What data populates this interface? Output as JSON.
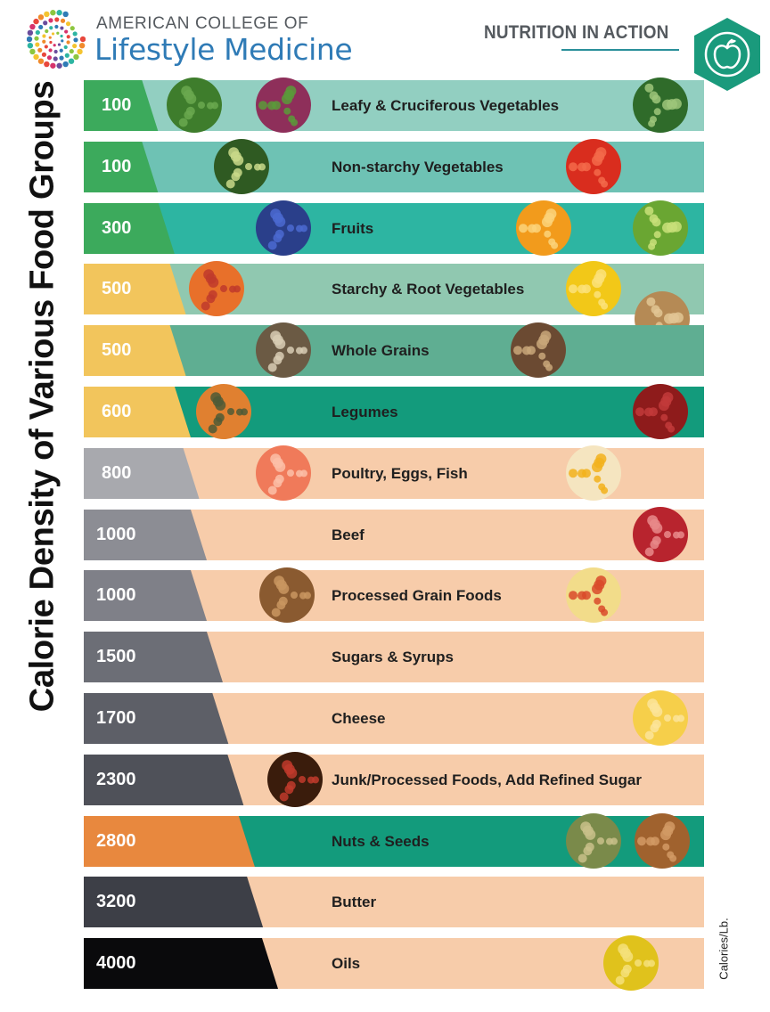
{
  "header": {
    "org_line1": "AMERICAN COLLEGE OF",
    "org_line2": "Lifestyle Medicine",
    "badge_title": "NUTRITION IN ACTION",
    "logo_icon": "dotted-circle-logo-icon",
    "badge_icon": "apple-icon",
    "brand_blue": "#2f7bb6",
    "badge_green": "#1a9a7c"
  },
  "chart_data": {
    "type": "bar",
    "ylabel": "Calorie Density of Various Food Groups",
    "unit_label": "Calories/Lb.",
    "categories": [
      "Leafy & Cruciferous Vegetables",
      "Non-starchy Vegetables",
      "Fruits",
      "Starchy & Root Vegetables",
      "Whole Grains",
      "Legumes",
      "Poultry, Eggs, Fish",
      "Beef",
      "Processed Grain Foods",
      "Sugars & Syrups",
      "Cheese",
      "Junk/Processed Foods, Add Refined Sugar",
      "Nuts & Seeds",
      "Butter",
      "Oils"
    ],
    "values": [
      100,
      100,
      300,
      500,
      500,
      600,
      800,
      1000,
      1000,
      1500,
      1700,
      2300,
      2800,
      3200,
      4000
    ],
    "value_labels": [
      "100",
      "100",
      "300",
      "500",
      "500",
      "600",
      "800",
      "1000",
      "1000",
      "1500",
      "1700",
      "2300",
      "2800",
      "3200",
      "4000"
    ],
    "tab_colors": [
      "#3caa5c",
      "#3caa5c",
      "#3caa5c",
      "#f2c55c",
      "#f2c55c",
      "#f2c55c",
      "#a8a9ae",
      "#8c8d94",
      "#7f8088",
      "#6c6e76",
      "#5d5f67",
      "#4f5159",
      "#e8883e",
      "#3d3f47",
      "#0a0a0c"
    ],
    "bar_colors": [
      "#92cfc1",
      "#6ec2b4",
      "#2db5a2",
      "#90c8b0",
      "#5fae92",
      "#139b7c",
      "#f7ccaa",
      "#f7ccaa",
      "#f7ccaa",
      "#f7ccaa",
      "#f7ccaa",
      "#f7ccaa",
      "#139b7c",
      "#f7ccaa",
      "#f7ccaa"
    ],
    "food_icons": [
      [
        "broccoli-icon",
        "mixed-salad-icon",
        "kale-leaf-icon"
      ],
      [
        "zucchini-icon",
        "tomato-icon"
      ],
      [
        "blueberries-icon",
        "orange-slice-icon",
        "kiwi-icon"
      ],
      [
        "carrots-icon",
        "corn-icon",
        "potatoes-icon"
      ],
      [
        "wild-rice-icon",
        "quinoa-icon"
      ],
      [
        "lentils-icon",
        "kidney-beans-icon"
      ],
      [
        "salmon-icon",
        "eggs-toast-icon"
      ],
      [
        "raw-beef-icon"
      ],
      [
        "shredded-wheat-icon",
        "pasta-icon"
      ],
      [],
      [
        "swiss-cheese-icon"
      ],
      [
        "soda-pour-icon"
      ],
      [
        "pumpkin-seeds-icon",
        "almonds-icon"
      ],
      [],
      [
        "olive-oil-bottle-icon"
      ]
    ]
  }
}
